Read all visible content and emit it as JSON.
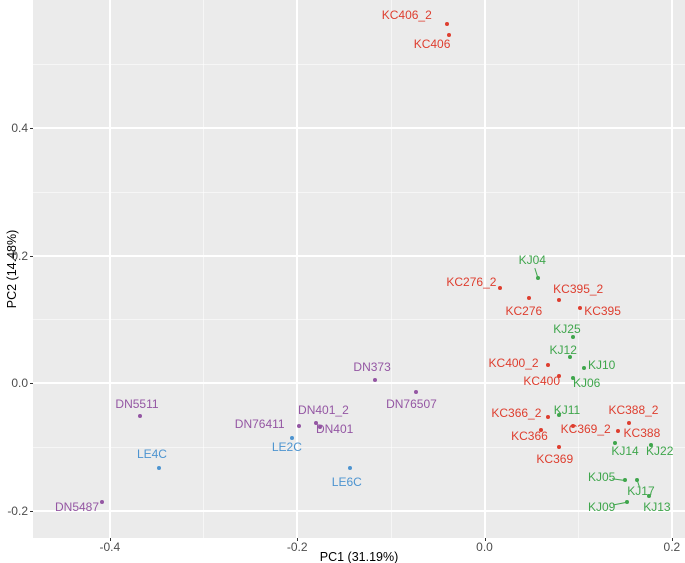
{
  "chart_data": {
    "type": "scatter",
    "title": "",
    "xlabel": "PC1 (31.19%)",
    "ylabel": "PC2 (14.48%)",
    "xlim": [
      -0.482,
      0.214
    ],
    "ylim": [
      -0.242,
      0.6
    ],
    "grid": true,
    "legend_position": "none",
    "panel_bg": "#EBEBEB",
    "grid_color": "#FFFFFF",
    "tick_text_color": "#4D4D4D",
    "x_ticks": [
      {
        "v": -0.4,
        "label": "-0.4"
      },
      {
        "v": -0.2,
        "label": "-0.2"
      },
      {
        "v": 0.0,
        "label": "0.0"
      },
      {
        "v": 0.2,
        "label": "0.2"
      }
    ],
    "y_ticks": [
      {
        "v": 0.4,
        "label": "0.4"
      },
      {
        "v": 0.2,
        "label": "0.2"
      },
      {
        "v": 0.0,
        "label": "0.0"
      },
      {
        "v": -0.2,
        "label": "-0.2"
      }
    ],
    "x_minor": [
      -0.3,
      -0.1,
      0.1
    ],
    "y_minor": [
      0.5,
      0.3,
      0.1,
      -0.1
    ],
    "groups": {
      "red": "#DE3E2F",
      "green": "#3FA64C",
      "blue": "#4D94D0",
      "purple": "#9456A3"
    },
    "points": [
      {
        "label": "KC406_2",
        "g": "red",
        "x": -0.04,
        "y": 0.562,
        "lx": -0.083,
        "ly": 0.576
      },
      {
        "label": "KC406",
        "g": "red",
        "x": -0.038,
        "y": 0.545,
        "lx": -0.056,
        "ly": 0.531
      },
      {
        "label": "KC276_2",
        "g": "red",
        "x": 0.017,
        "y": 0.15,
        "lx": -0.014,
        "ly": 0.159
      },
      {
        "label": "KC276",
        "g": "red",
        "x": 0.048,
        "y": 0.134,
        "lx": 0.042,
        "ly": 0.113
      },
      {
        "label": "KC395_2",
        "g": "red",
        "x": 0.08,
        "y": 0.131,
        "lx": 0.1,
        "ly": 0.147
      },
      {
        "label": "KC395",
        "g": "red",
        "x": 0.102,
        "y": 0.118,
        "lx": 0.126,
        "ly": 0.114
      },
      {
        "label": "KC400_2",
        "g": "red",
        "x": 0.068,
        "y": 0.028,
        "lx": 0.031,
        "ly": 0.032
      },
      {
        "label": "KC400",
        "g": "red",
        "x": 0.08,
        "y": 0.012,
        "lx": 0.061,
        "ly": 0.004
      },
      {
        "label": "KC366_2",
        "g": "red",
        "x": 0.068,
        "y": -0.052,
        "lx": 0.034,
        "ly": -0.046
      },
      {
        "label": "KC366",
        "g": "red",
        "x": 0.06,
        "y": -0.073,
        "lx": 0.048,
        "ly": -0.083
      },
      {
        "label": "KC369_2",
        "g": "red",
        "x": 0.094,
        "y": -0.066,
        "lx": 0.108,
        "ly": -0.072
      },
      {
        "label": "KC369",
        "g": "red",
        "x": 0.08,
        "y": -0.1,
        "lx": 0.075,
        "ly": -0.119
      },
      {
        "label": "KC388_2",
        "g": "red",
        "x": 0.154,
        "y": -0.062,
        "lx": 0.159,
        "ly": -0.041
      },
      {
        "label": "KC388",
        "g": "red",
        "x": 0.143,
        "y": -0.074,
        "lx": 0.168,
        "ly": -0.078
      },
      {
        "label": "KJ04",
        "g": "green",
        "x": 0.057,
        "y": 0.165,
        "lx": 0.051,
        "ly": 0.193,
        "seg": true
      },
      {
        "label": "KJ25",
        "g": "green",
        "x": 0.094,
        "y": 0.072,
        "lx": 0.088,
        "ly": 0.085
      },
      {
        "label": "KJ12",
        "g": "green",
        "x": 0.091,
        "y": 0.041,
        "lx": 0.084,
        "ly": 0.053
      },
      {
        "label": "KJ10",
        "g": "green",
        "x": 0.106,
        "y": 0.024,
        "lx": 0.125,
        "ly": 0.028
      },
      {
        "label": "KJ06",
        "g": "green",
        "x": 0.094,
        "y": 0.009,
        "lx": 0.109,
        "ly": 0.001
      },
      {
        "label": "KJ11",
        "g": "green",
        "x": 0.079,
        "y": -0.05,
        "lx": 0.088,
        "ly": -0.041
      },
      {
        "label": "KJ14",
        "g": "green",
        "x": 0.139,
        "y": -0.094,
        "lx": 0.15,
        "ly": -0.106
      },
      {
        "label": "KJ22",
        "g": "green",
        "x": 0.178,
        "y": -0.096,
        "lx": 0.187,
        "ly": -0.106
      },
      {
        "label": "KJ05",
        "g": "green",
        "x": 0.15,
        "y": -0.152,
        "lx": 0.125,
        "ly": -0.147,
        "seg": true
      },
      {
        "label": "KJ17",
        "g": "green",
        "x": 0.163,
        "y": -0.152,
        "lx": 0.167,
        "ly": -0.169,
        "seg": true
      },
      {
        "label": "KJ09",
        "g": "green",
        "x": 0.152,
        "y": -0.186,
        "lx": 0.125,
        "ly": -0.194,
        "seg": true
      },
      {
        "label": "KJ13",
        "g": "green",
        "x": 0.176,
        "y": -0.176,
        "lx": 0.184,
        "ly": -0.194
      },
      {
        "label": "LE4C",
        "g": "blue",
        "x": -0.347,
        "y": -0.132,
        "lx": -0.355,
        "ly": -0.111
      },
      {
        "label": "LE2C",
        "g": "blue",
        "x": -0.205,
        "y": -0.086,
        "lx": -0.211,
        "ly": -0.1
      },
      {
        "label": "LE6C",
        "g": "blue",
        "x": -0.144,
        "y": -0.133,
        "lx": -0.147,
        "ly": -0.155
      },
      {
        "label": "DN5511",
        "g": "purple",
        "x": -0.368,
        "y": -0.051,
        "lx": -0.371,
        "ly": -0.032
      },
      {
        "label": "DN5487",
        "g": "purple",
        "x": -0.408,
        "y": -0.186,
        "lx": -0.435,
        "ly": -0.194
      },
      {
        "label": "DN76411",
        "g": "purple",
        "x": -0.198,
        "y": -0.066,
        "lx": -0.24,
        "ly": -0.064
      },
      {
        "label": "DN401_2",
        "g": "purple",
        "x": -0.18,
        "y": -0.062,
        "lx": -0.172,
        "ly": -0.041
      },
      {
        "label": "DN401",
        "g": "purple",
        "x": -0.176,
        "y": -0.068,
        "lx": -0.16,
        "ly": -0.072
      },
      {
        "label": "DN373",
        "g": "purple",
        "x": -0.117,
        "y": 0.006,
        "lx": -0.12,
        "ly": 0.025
      },
      {
        "label": "DN76507",
        "g": "purple",
        "x": -0.073,
        "y": -0.014,
        "lx": -0.078,
        "ly": -0.033
      }
    ]
  }
}
